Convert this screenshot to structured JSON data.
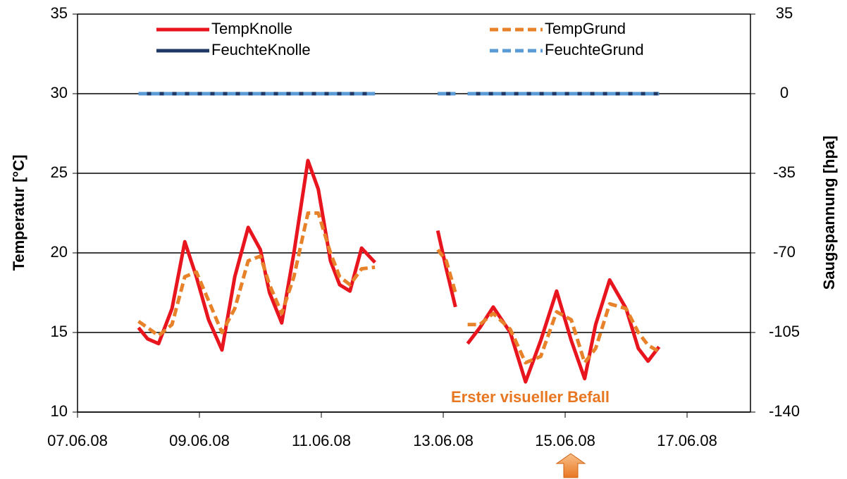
{
  "chart_data": {
    "type": "line",
    "ylabel": "Temperatur [°C]",
    "y2label": "Saugspannung [hpa]",
    "annotation": "Erster visueller Befall",
    "x": [
      1.0,
      1.15,
      1.33,
      1.55,
      1.76,
      1.95,
      2.15,
      2.37,
      2.58,
      2.8,
      3.0,
      3.15,
      3.35,
      3.55,
      3.78,
      3.95,
      4.15,
      4.3,
      4.47,
      4.66,
      4.88,
      5.3,
      5.91,
      6.05,
      6.2,
      6.3,
      6.4,
      6.6,
      6.82,
      7.1,
      7.35,
      7.6,
      7.86,
      8.1,
      8.32,
      8.5,
      8.73,
      9.0,
      9.2,
      9.36,
      9.54
    ],
    "series": [
      {
        "name": "TempKnolle",
        "color": "#e8141e",
        "dash": false,
        "values": [
          15.3,
          14.6,
          14.3,
          16.5,
          20.7,
          18.5,
          15.8,
          13.9,
          18.5,
          21.6,
          20.2,
          17.5,
          15.6,
          20,
          25.8,
          24,
          19.5,
          18,
          17.6,
          20.3,
          19.4,
          null,
          21.4,
          19,
          16.6,
          null,
          14.3,
          15.3,
          16.6,
          15,
          11.9,
          14.5,
          17.6,
          14.5,
          12.1,
          15.5,
          18.3,
          16.5,
          14,
          13.2,
          14.1
        ]
      },
      {
        "name": "TempGrund",
        "color": "#e8822a",
        "dash": true,
        "values": [
          15.7,
          15.3,
          14.8,
          15.5,
          18.5,
          18.8,
          17,
          15,
          16.5,
          19.5,
          19.8,
          18,
          16.2,
          18.5,
          22.5,
          22.5,
          20,
          18.5,
          18,
          19,
          19.1,
          null,
          20.2,
          19.5,
          17.5,
          null,
          15.5,
          15.5,
          16.2,
          15.2,
          13.1,
          13.5,
          16.3,
          15.8,
          13.1,
          14,
          16.8,
          16.5,
          15,
          14.2,
          13.8
        ]
      },
      {
        "name": "FeuchteKnolle",
        "color": "#1f3864",
        "dash": false,
        "axis": "y2",
        "values": [
          0,
          0,
          0,
          0,
          0,
          0,
          0,
          0,
          0,
          0,
          0,
          0,
          0,
          0,
          0,
          0,
          0,
          0,
          0,
          0,
          0,
          null,
          0,
          0,
          0,
          null,
          0,
          0,
          0,
          0,
          0,
          0,
          0,
          0,
          0,
          0,
          0,
          0,
          0,
          0,
          0
        ]
      },
      {
        "name": "FeuchteGrund",
        "color": "#5b9bd5",
        "dash": true,
        "axis": "y2",
        "values": [
          0,
          0,
          0,
          0,
          0,
          0,
          0,
          0,
          0,
          0,
          0,
          0,
          0,
          0,
          0,
          0,
          0,
          0,
          0,
          0,
          0,
          null,
          0,
          0,
          0,
          null,
          0,
          0,
          0,
          0,
          0,
          0,
          0,
          0,
          0,
          0,
          0,
          0,
          0,
          0,
          0
        ]
      }
    ],
    "xlim": [
      0,
      11.04
    ],
    "xticks": [
      {
        "value": 0,
        "label": "07.06.08"
      },
      {
        "value": 2,
        "label": "09.06.08"
      },
      {
        "value": 4,
        "label": "11.06.08"
      },
      {
        "value": 6,
        "label": "13.06.08"
      },
      {
        "value": 8,
        "label": "15.06.08"
      },
      {
        "value": 10,
        "label": "17.06.08"
      }
    ],
    "ylim": [
      10,
      35
    ],
    "yticks": [
      10,
      15,
      20,
      25,
      30,
      35
    ],
    "y2lim": [
      -140,
      35
    ],
    "y2ticks": [
      -140,
      -105,
      -70,
      -35,
      0,
      35
    ],
    "grid": true,
    "legend": "top"
  }
}
